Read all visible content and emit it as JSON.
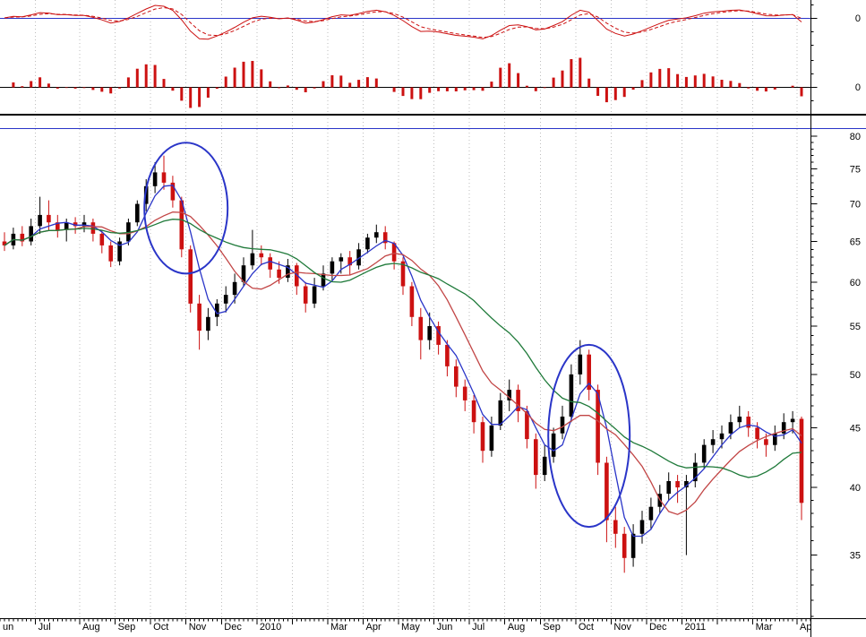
{
  "colors": {
    "grid": "#bdbdbd",
    "axis": "#000000",
    "blue": "#2a35c8"
  },
  "chart_data": {
    "type": "candlestick",
    "title": "",
    "x_axis": {
      "labels": [
        {
          "label": "un",
          "bar": 0
        },
        {
          "label": "Jul",
          "bar": 4
        },
        {
          "label": "Aug",
          "bar": 9
        },
        {
          "label": "Sep",
          "bar": 13
        },
        {
          "label": "Oct",
          "bar": 17
        },
        {
          "label": "Nov",
          "bar": 21
        },
        {
          "label": "Dec",
          "bar": 25
        },
        {
          "label": "2010",
          "bar": 29
        },
        {
          "label": "Mar",
          "bar": 37
        },
        {
          "label": "Apr",
          "bar": 41
        },
        {
          "label": "May",
          "bar": 45
        },
        {
          "label": "Jun",
          "bar": 49
        },
        {
          "label": "Jul",
          "bar": 53
        },
        {
          "label": "Aug",
          "bar": 57
        },
        {
          "label": "Sep",
          "bar": 61
        },
        {
          "label": "Oct",
          "bar": 65
        },
        {
          "label": "Nov",
          "bar": 69
        },
        {
          "label": "Dec",
          "bar": 73
        },
        {
          "label": "2011",
          "bar": 77
        },
        {
          "label": "Mar",
          "bar": 85
        },
        {
          "label": "Ap",
          "bar": 90
        }
      ],
      "gridline_bars": [
        4,
        9,
        13,
        17,
        21,
        25,
        29,
        33,
        37,
        41,
        45,
        49,
        53,
        57,
        61,
        65,
        69,
        73,
        77,
        81,
        85,
        90
      ]
    },
    "macd": {
      "zero_label": "0",
      "line_color": "#cc1111",
      "signal_style": "dashed",
      "zero_line_color": "#2a35c8",
      "derivation": {
        "fast": 4,
        "slow": 9,
        "signal": 3
      }
    },
    "histogram": {
      "zero_label": "0",
      "bar_color": "#cc1111"
    },
    "price": {
      "scale": "log",
      "range": [
        30.9,
        80.3
      ],
      "tick_labels": [
        "80",
        "75",
        "70",
        "65",
        "60",
        "55",
        "50",
        "45",
        "40",
        "35"
      ],
      "up_color": "#000000",
      "down_color": "#cc1111",
      "moving_averages": [
        {
          "name": "ma-fast",
          "color": "#2a35c8",
          "window": 4
        },
        {
          "name": "ma-medium",
          "color": "#c24646",
          "window": 9
        },
        {
          "name": "ma-slow",
          "color": "#1f7a3a",
          "window": 18
        }
      ],
      "candles": [
        [
          65.0,
          66.2,
          63.8,
          64.5
        ],
        [
          64.5,
          66.8,
          64.0,
          66.0
        ],
        [
          66.0,
          67.0,
          64.4,
          65.0
        ],
        [
          65.0,
          68.0,
          64.5,
          67.0
        ],
        [
          67.0,
          71.0,
          66.0,
          68.5
        ],
        [
          68.5,
          70.5,
          66.5,
          67.5
        ],
        [
          67.5,
          68.5,
          65.5,
          66.5
        ],
        [
          66.5,
          68.0,
          65.0,
          67.5
        ],
        [
          67.5,
          68.2,
          66.0,
          67.0
        ],
        [
          67.0,
          68.5,
          66.2,
          67.5
        ],
        [
          67.5,
          68.0,
          65.0,
          66.0
        ],
        [
          66.0,
          66.5,
          63.5,
          64.5
        ],
        [
          64.5,
          65.0,
          61.8,
          62.5
        ],
        [
          62.5,
          65.5,
          62.0,
          65.0
        ],
        [
          65.0,
          68.0,
          64.5,
          67.5
        ],
        [
          67.5,
          70.5,
          67.0,
          70.0
        ],
        [
          70.0,
          73.5,
          69.0,
          72.5
        ],
        [
          72.5,
          76.0,
          71.5,
          74.5
        ],
        [
          74.5,
          77.0,
          72.0,
          73.0
        ],
        [
          73.0,
          74.0,
          69.5,
          70.5
        ],
        [
          70.5,
          71.0,
          63.0,
          64.0
        ],
        [
          64.0,
          64.5,
          56.5,
          57.5
        ],
        [
          57.5,
          58.5,
          52.5,
          54.5
        ],
        [
          54.5,
          57.0,
          53.5,
          56.0
        ],
        [
          56.0,
          58.0,
          55.0,
          57.5
        ],
        [
          57.5,
          59.5,
          56.5,
          58.5
        ],
        [
          58.5,
          61.0,
          57.5,
          60.0
        ],
        [
          60.0,
          63.0,
          59.5,
          62.0
        ],
        [
          62.0,
          66.5,
          61.5,
          63.5
        ],
        [
          63.5,
          64.5,
          62.0,
          63.0
        ],
        [
          63.0,
          63.5,
          60.5,
          61.5
        ],
        [
          61.5,
          62.5,
          59.8,
          60.5
        ],
        [
          60.5,
          62.8,
          60.0,
          62.0
        ],
        [
          62.0,
          62.3,
          58.5,
          59.5
        ],
        [
          59.5,
          60.0,
          56.5,
          57.5
        ],
        [
          57.5,
          60.5,
          57.0,
          59.5
        ],
        [
          59.5,
          62.0,
          59.0,
          61.0
        ],
        [
          61.0,
          63.0,
          60.0,
          62.5
        ],
        [
          62.5,
          63.5,
          61.0,
          63.0
        ],
        [
          63.0,
          63.8,
          60.8,
          62.0
        ],
        [
          62.0,
          64.8,
          61.5,
          64.0
        ],
        [
          64.0,
          66.0,
          63.5,
          65.5
        ],
        [
          65.5,
          67.2,
          64.8,
          66.2
        ],
        [
          66.2,
          67.0,
          64.0,
          64.8
        ],
        [
          64.8,
          65.0,
          61.5,
          62.5
        ],
        [
          62.5,
          63.0,
          58.5,
          59.5
        ],
        [
          59.5,
          60.0,
          55.0,
          56.0
        ],
        [
          56.0,
          57.0,
          51.5,
          53.5
        ],
        [
          53.5,
          56.5,
          52.5,
          55.0
        ],
        [
          55.0,
          55.5,
          52.0,
          53.0
        ],
        [
          53.0,
          53.5,
          49.8,
          50.8
        ],
        [
          50.8,
          51.5,
          47.8,
          48.8
        ],
        [
          48.8,
          49.5,
          46.5,
          47.5
        ],
        [
          47.5,
          48.0,
          44.5,
          45.5
        ],
        [
          45.5,
          46.0,
          42.0,
          43.0
        ],
        [
          43.0,
          46.0,
          42.5,
          45.2
        ],
        [
          45.2,
          48.2,
          44.8,
          47.5
        ],
        [
          47.5,
          49.5,
          46.5,
          48.5
        ],
        [
          48.5,
          49.0,
          45.5,
          46.5
        ],
        [
          46.5,
          47.0,
          43.2,
          44.0
        ],
        [
          44.0,
          44.5,
          39.9,
          41.0
        ],
        [
          41.0,
          43.5,
          40.5,
          42.5
        ],
        [
          42.5,
          45.0,
          42.0,
          44.5
        ],
        [
          44.5,
          47.0,
          44.0,
          46.0
        ],
        [
          46.0,
          51.0,
          45.5,
          50.0
        ],
        [
          50.0,
          53.5,
          49.0,
          52.0
        ],
        [
          52.0,
          52.5,
          47.5,
          48.5
        ],
        [
          48.5,
          49.0,
          41.0,
          42.0
        ],
        [
          42.0,
          42.5,
          35.9,
          37.5
        ],
        [
          37.5,
          38.5,
          35.5,
          36.5
        ],
        [
          36.5,
          37.0,
          33.8,
          34.8
        ],
        [
          34.8,
          37.2,
          34.2,
          36.5
        ],
        [
          36.5,
          38.2,
          35.8,
          37.5
        ],
        [
          37.5,
          39.2,
          36.8,
          38.5
        ],
        [
          38.5,
          40.2,
          38.0,
          39.5
        ],
        [
          39.5,
          41.2,
          39.0,
          40.5
        ],
        [
          40.5,
          41.0,
          38.8,
          40.0
        ],
        [
          40.0,
          41.0,
          35.0,
          40.5
        ],
        [
          40.5,
          42.8,
          40.0,
          42.0
        ],
        [
          42.0,
          44.0,
          41.5,
          43.5
        ],
        [
          43.5,
          44.8,
          42.8,
          44.0
        ],
        [
          44.0,
          45.2,
          43.2,
          44.5
        ],
        [
          44.5,
          46.2,
          44.0,
          45.5
        ],
        [
          45.5,
          47.0,
          45.0,
          46.0
        ],
        [
          46.0,
          46.5,
          44.2,
          45.0
        ],
        [
          45.0,
          45.5,
          43.2,
          44.0
        ],
        [
          44.0,
          44.5,
          42.5,
          43.5
        ],
        [
          43.5,
          45.2,
          43.0,
          44.5
        ],
        [
          44.5,
          46.3,
          44.0,
          45.5
        ],
        [
          45.5,
          46.5,
          44.5,
          45.8
        ],
        [
          45.8,
          46.0,
          37.5,
          38.8
        ]
      ]
    },
    "annotations": [
      {
        "type": "ellipse",
        "name": "crossover-circle-2009",
        "color": "#2a35c8",
        "center_bar": 20.5,
        "price_top": 79.0,
        "price_bottom": 61.0,
        "rx_bars": 4.7
      },
      {
        "type": "ellipse",
        "name": "crossover-circle-2010",
        "color": "#2a35c8",
        "center_bar": 66.0,
        "price_top": 53.0,
        "price_bottom": 37.0,
        "rx_bars": 4.6
      }
    ]
  }
}
